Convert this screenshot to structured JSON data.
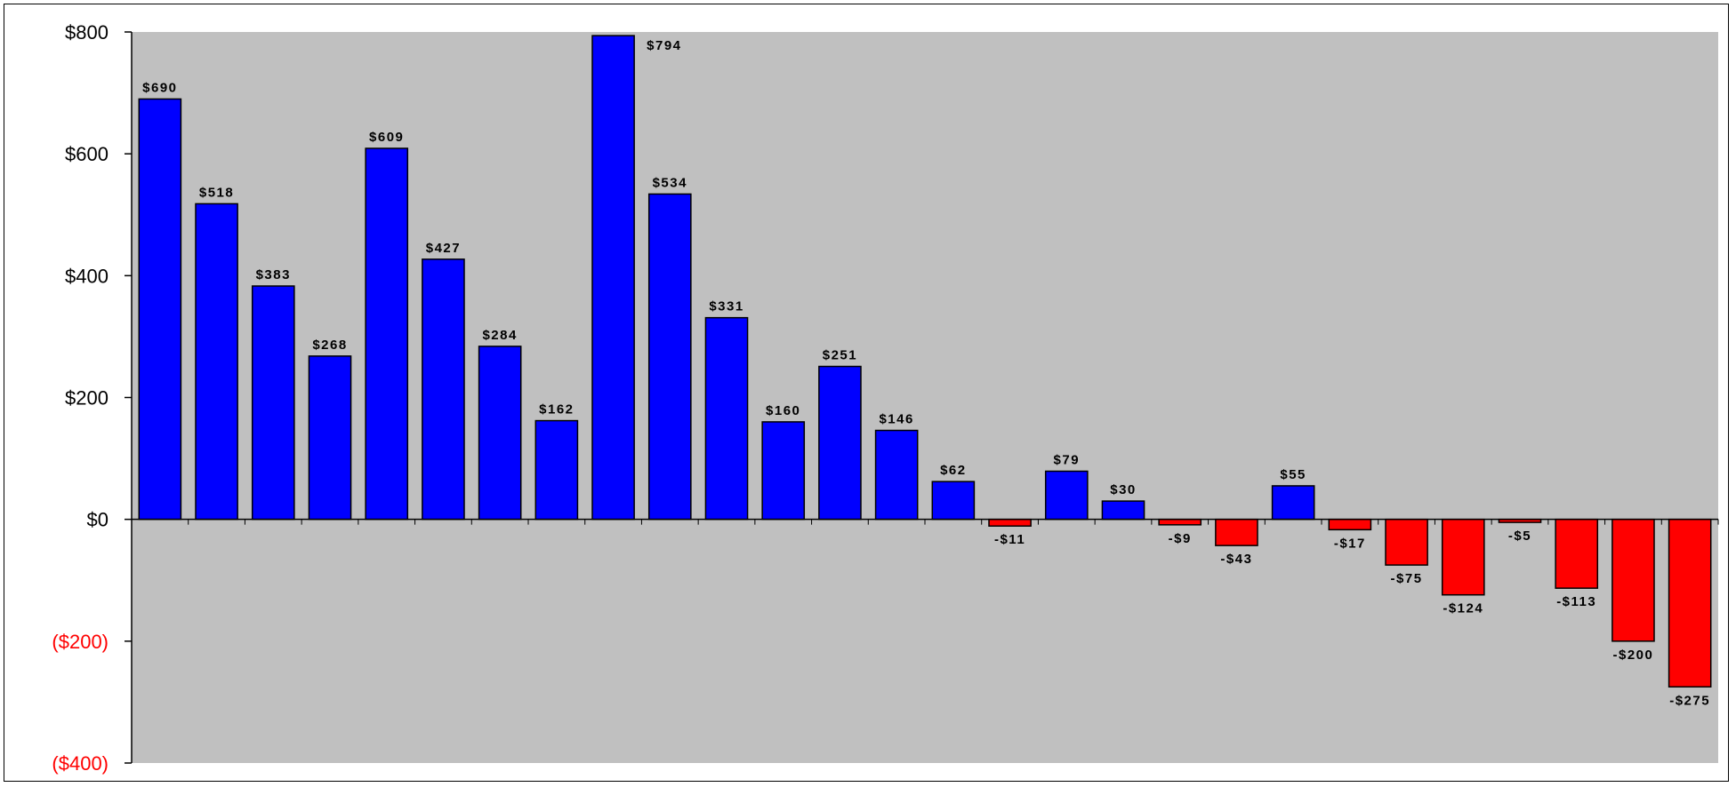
{
  "chart_data": {
    "type": "bar",
    "categories": [
      "",
      "",
      "",
      "",
      "",
      "",
      "",
      "",
      "",
      "",
      "",
      "",
      "",
      "",
      "",
      "",
      "",
      "",
      "",
      "",
      "",
      "",
      "",
      "",
      "",
      "",
      "",
      ""
    ],
    "values": [
      690,
      518,
      383,
      268,
      609,
      427,
      284,
      162,
      794,
      534,
      331,
      160,
      251,
      146,
      62,
      -11,
      79,
      30,
      -9,
      -43,
      55,
      -17,
      -75,
      -124,
      -5,
      -113,
      -200,
      -275
    ],
    "data_labels": [
      "$690",
      "$518",
      "$383",
      "$268",
      "$609",
      "$427",
      "$284",
      "$162",
      "$794",
      "$534",
      "$331",
      "$160",
      "$251",
      "$146",
      "$62",
      "-$11",
      "$79",
      "$30",
      "-$9",
      "-$43",
      "$55",
      "-$17",
      "-$75",
      "-$124",
      "-$5",
      "-$113",
      "-$200",
      "-$275"
    ],
    "y_ticks": [
      {
        "value": 800,
        "label": "$800"
      },
      {
        "value": 600,
        "label": "$600"
      },
      {
        "value": 400,
        "label": "$400"
      },
      {
        "value": 200,
        "label": "$200"
      },
      {
        "value": 0,
        "label": "$0"
      },
      {
        "value": -200,
        "label": "($200)"
      },
      {
        "value": -400,
        "label": "($400)"
      }
    ],
    "ylim": [
      -400,
      800
    ],
    "title": "",
    "xlabel": "",
    "ylabel": "",
    "grid": false,
    "legend": "none",
    "colors": {
      "positive_bar": "#0000ff",
      "negative_bar": "#ff0000",
      "plot_background": "#c0c0c0",
      "positive_tick_label": "#000000",
      "negative_tick_label": "#ff0000",
      "bar_outline": "#000000"
    }
  }
}
